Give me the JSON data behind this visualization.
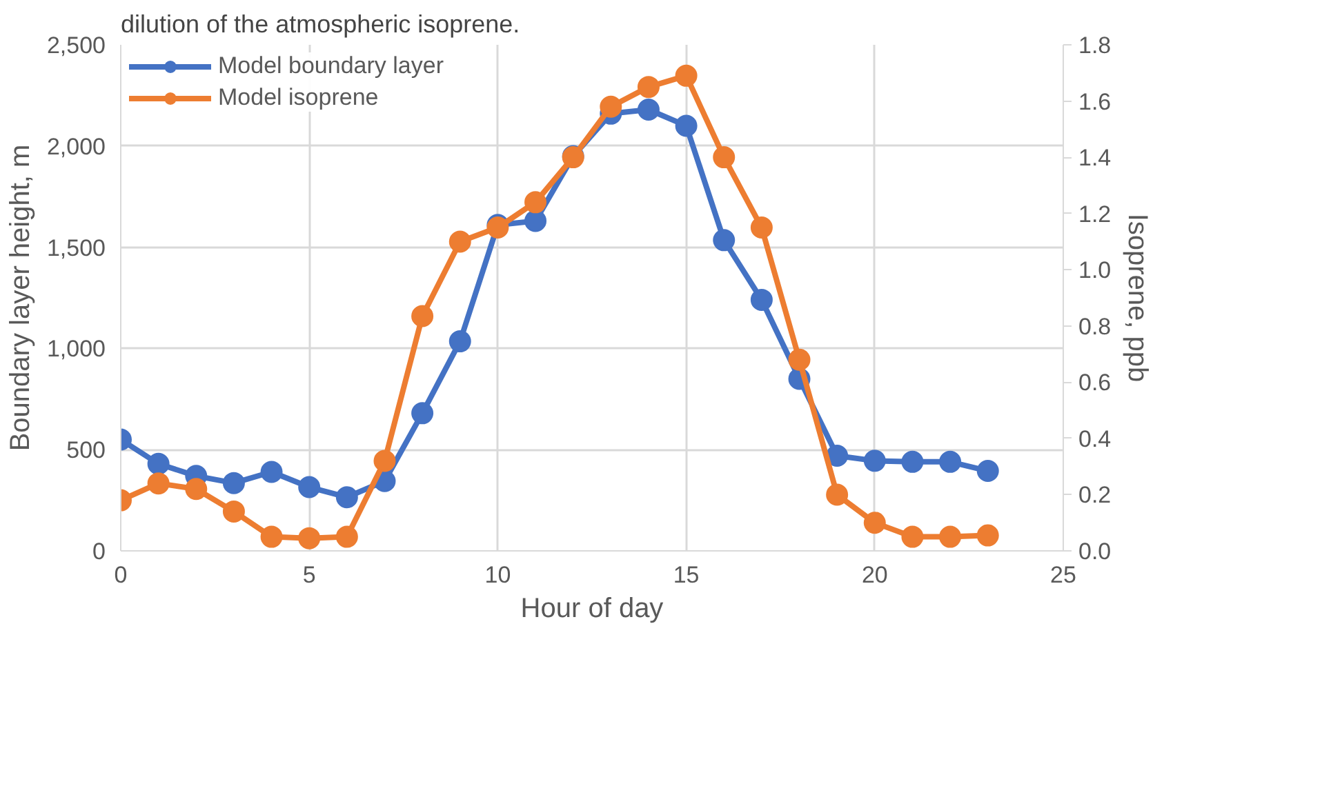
{
  "chart_data": {
    "type": "line",
    "annotations": [
      "dilution of the atmospheric isoprene."
    ],
    "xlabel": "Hour of day",
    "ylabel": "Boundary layer height, m",
    "y2label": "Isoprene, ppb",
    "x": [
      0,
      1,
      2,
      3,
      4,
      5,
      6,
      7,
      8,
      9,
      10,
      11,
      12,
      13,
      14,
      15,
      16,
      17,
      18,
      19,
      20,
      21,
      22,
      23
    ],
    "series": [
      {
        "name": "Model boundary layer",
        "color": "#4472c4",
        "values": [
          550,
          430,
          370,
          335,
          390,
          315,
          265,
          345,
          680,
          1035,
          1610,
          1630,
          1950,
          2160,
          2180,
          2100,
          1535,
          1240,
          850,
          470,
          445,
          440,
          440,
          395
        ]
      },
      {
        "name": "Model isoprene",
        "color": "#ed7d31",
        "axis": "y2",
        "values": [
          0.18,
          0.24,
          0.22,
          0.14,
          0.05,
          0.045,
          0.05,
          0.32,
          0.835,
          1.1,
          1.15,
          1.24,
          1.4,
          1.58,
          1.65,
          1.69,
          1.4,
          1.15,
          0.68,
          0.2,
          0.1,
          0.05,
          0.05,
          0.055
        ]
      }
    ],
    "xlim": [
      0,
      25
    ],
    "xticks": [
      0,
      5,
      10,
      15,
      20,
      25
    ],
    "ylim": [
      0,
      2500
    ],
    "yticks": [
      {
        "value": 0,
        "label": "0"
      },
      {
        "value": 500,
        "label": "500"
      },
      {
        "value": 1000,
        "label": "1,000"
      },
      {
        "value": 1500,
        "label": "1,500"
      },
      {
        "value": 2000,
        "label": "2,000"
      },
      {
        "value": 2500,
        "label": "2,500"
      }
    ],
    "y2lim": [
      0,
      1.8
    ],
    "y2ticks": [
      {
        "value": 0,
        "label": "0.0"
      },
      {
        "value": 0.2,
        "label": "0.2"
      },
      {
        "value": 0.4,
        "label": "0.4"
      },
      {
        "value": 0.6,
        "label": "0.6"
      },
      {
        "value": 0.8,
        "label": "0.8"
      },
      {
        "value": 1.0,
        "label": "1.0"
      },
      {
        "value": 1.2,
        "label": "1.2"
      },
      {
        "value": 1.4,
        "label": "1.4"
      },
      {
        "value": 1.6,
        "label": "1.6"
      },
      {
        "value": 1.8,
        "label": "1.8"
      }
    ],
    "grid": true,
    "legend": "top left",
    "marker": "circle",
    "line_style": "solid"
  }
}
